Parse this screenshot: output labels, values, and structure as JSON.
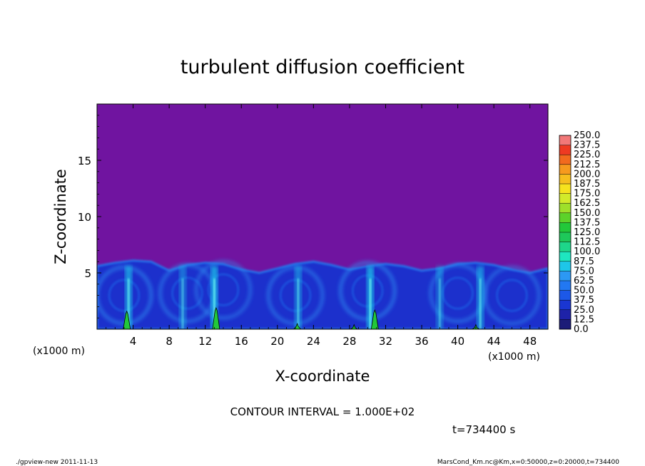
{
  "chart_data": {
    "type": "heatmap",
    "title": "turbulent diffusion coefficient",
    "xlabel": "X-coordinate",
    "ylabel": "Z-coordinate",
    "x_unit_left": "(x1000 m)",
    "x_unit_right": "(x1000 m)",
    "xlim": [
      0,
      50
    ],
    "ylim": [
      0,
      20
    ],
    "x_ticks": [
      4,
      8,
      12,
      16,
      20,
      24,
      28,
      32,
      36,
      40,
      44,
      48
    ],
    "x_tick_labels": [
      "4",
      "8",
      "12",
      "16",
      "20",
      "24",
      "28",
      "32",
      "36",
      "40",
      "44",
      "48"
    ],
    "y_ticks": [
      5,
      10,
      15
    ],
    "y_tick_labels": [
      "5",
      "10",
      "15"
    ],
    "colorbar": {
      "levels": [
        "0.0",
        "12.5",
        "25.0",
        "37.5",
        "50.0",
        "62.5",
        "75.0",
        "87.5",
        "100.0",
        "112.5",
        "125.0",
        "137.5",
        "150.0",
        "162.5",
        "175.0",
        "187.5",
        "200.0",
        "212.5",
        "225.0",
        "237.5",
        "250.0"
      ],
      "colors": [
        "#1c1c78",
        "#1e22a8",
        "#1a36d2",
        "#1c58e8",
        "#2278f2",
        "#2c98f4",
        "#1ec6e8",
        "#1ee6c0",
        "#1ed68a",
        "#1ec85a",
        "#22c83a",
        "#5cd22a",
        "#9ee02a",
        "#d2ea2a",
        "#f6e21e",
        "#f6be1e",
        "#f69a1e",
        "#f26a1e",
        "#ee3a22",
        "#f27878"
      ]
    },
    "background_color": "#7014a0",
    "boundary_layer": {
      "top_z": [
        5.6,
        5.9,
        6.1,
        6.0,
        5.2,
        5.7,
        5.9,
        5.8,
        5.3,
        5.0,
        5.4,
        5.8,
        6.0,
        5.7,
        5.3,
        5.6,
        5.8,
        5.6,
        5.2,
        5.4,
        5.8,
        5.9,
        5.7,
        5.3,
        5.0,
        5.4
      ],
      "cells": [
        {
          "x_center": 3,
          "z_center": 3.0,
          "strength": 0.6
        },
        {
          "x_center": 10,
          "z_center": 3.2,
          "strength": 0.55
        },
        {
          "x_center": 14,
          "z_center": 3.5,
          "strength": 0.5
        },
        {
          "x_center": 22,
          "z_center": 3.0,
          "strength": 0.55
        },
        {
          "x_center": 30,
          "z_center": 3.4,
          "strength": 0.6
        },
        {
          "x_center": 40,
          "z_center": 3.2,
          "strength": 0.55
        },
        {
          "x_center": 46,
          "z_center": 3.0,
          "strength": 0.5
        }
      ],
      "plumes": [
        {
          "x": 3.5,
          "strength": 0.9
        },
        {
          "x": 9.5,
          "strength": 0.6
        },
        {
          "x": 13.0,
          "strength": 1.0
        },
        {
          "x": 22.3,
          "strength": 0.7
        },
        {
          "x": 30.3,
          "strength": 1.0
        },
        {
          "x": 38.0,
          "strength": 0.6
        },
        {
          "x": 42.5,
          "strength": 0.8
        }
      ],
      "green_spikes": [
        {
          "x": 3.3,
          "height": 1.6
        },
        {
          "x": 13.2,
          "height": 1.9
        },
        {
          "x": 22.2,
          "height": 0.5
        },
        {
          "x": 28.5,
          "height": 0.4
        },
        {
          "x": 30.8,
          "height": 1.7
        },
        {
          "x": 42.0,
          "height": 0.4
        }
      ]
    }
  },
  "footer": {
    "contour_interval": "CONTOUR INTERVAL = 1.000E+02",
    "time": "t=734400 s",
    "left_note": "./gpview-new  2011-11-13",
    "right_note": "MarsCond_Km.nc@Km,x=0:50000,z=0:20000,t=734400"
  }
}
